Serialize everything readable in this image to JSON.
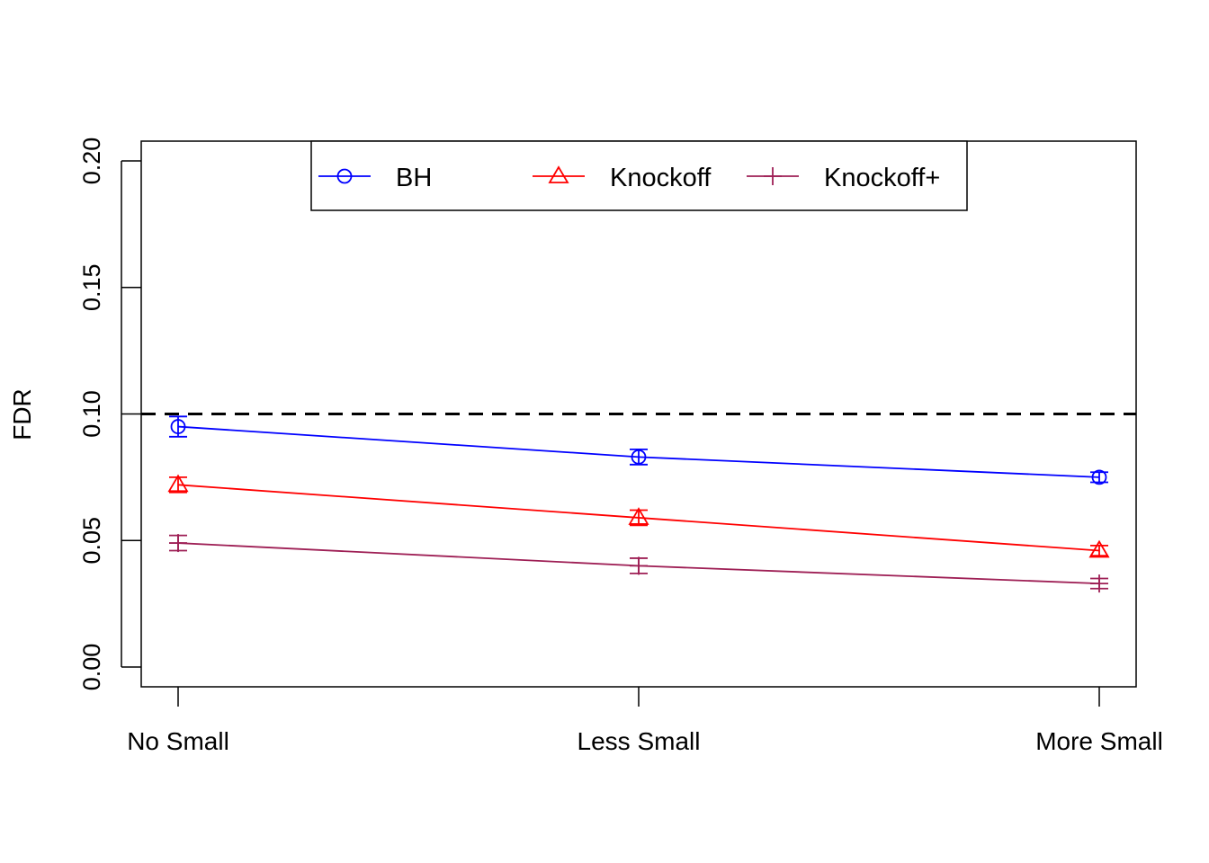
{
  "chart_data": {
    "type": "line",
    "title": "",
    "xlabel": "",
    "ylabel": "FDR",
    "categories": [
      "No Small",
      "Less Small",
      "More Small"
    ],
    "ylim": [
      0.0,
      0.2
    ],
    "yticks": [
      "0.00",
      "0.05",
      "0.10",
      "0.15",
      "0.20"
    ],
    "grid": false,
    "legend_position": "top",
    "reference_line": {
      "y": 0.1,
      "style": "dashed",
      "color": "#000000"
    },
    "series": [
      {
        "name": "BH",
        "color": "#0000ff",
        "marker": "circle",
        "values": [
          0.095,
          0.083,
          0.075
        ],
        "err_low": [
          0.091,
          0.08,
          0.073
        ],
        "err_high": [
          0.099,
          0.086,
          0.077
        ]
      },
      {
        "name": "Knockoff",
        "color": "#ff0000",
        "marker": "triangle",
        "values": [
          0.072,
          0.059,
          0.046
        ],
        "err_low": [
          0.069,
          0.056,
          0.044
        ],
        "err_high": [
          0.075,
          0.062,
          0.048
        ]
      },
      {
        "name": "Knockoff+",
        "color": "#9e1f55",
        "marker": "plus",
        "values": [
          0.049,
          0.04,
          0.033
        ],
        "err_low": [
          0.046,
          0.037,
          0.031
        ],
        "err_high": [
          0.052,
          0.043,
          0.035
        ]
      }
    ]
  }
}
